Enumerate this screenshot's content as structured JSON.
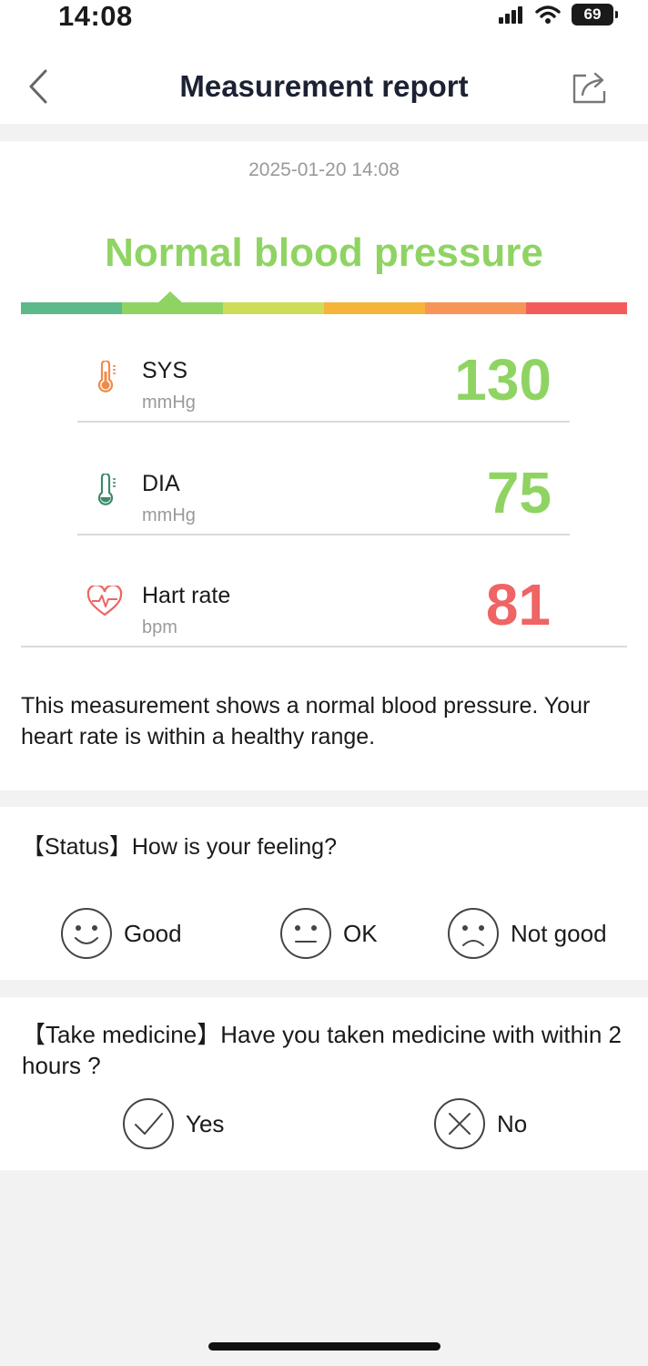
{
  "status_bar": {
    "time": "14:08",
    "battery": "69",
    "icons": [
      "signal-icon",
      "wifi-icon",
      "battery-icon"
    ]
  },
  "header": {
    "title": "Measurement report",
    "back_icon": "chevron-left-icon",
    "share_icon": "share-icon"
  },
  "report": {
    "datetime": "2025-01-20 14:08",
    "status": "Normal blood pressure",
    "status_color": "#8fd463",
    "scale_colors": [
      "#5bb98b",
      "#8fd463",
      "#cfdc5a",
      "#f5b53a",
      "#f79558",
      "#f45c5c"
    ],
    "scale_level_index": 1,
    "metrics": [
      {
        "label": "SYS",
        "unit": "mmHg",
        "value": "130",
        "color": "#8fd463",
        "icon": "thermometer-icon"
      },
      {
        "label": "DIA",
        "unit": "mmHg",
        "value": "75",
        "color": "#8fd463",
        "icon": "thermometer-icon"
      },
      {
        "label": "Hart rate",
        "unit": "bpm",
        "value": "81",
        "color": "#ef6464",
        "icon": "heart-pulse-icon"
      }
    ],
    "summary": "This measurement shows a normal blood pressure. Your heart rate is within a healthy range."
  },
  "status_section": {
    "question": "【Status】How is your feeling?",
    "options": [
      {
        "label": "Good",
        "icon": "smile-face-icon"
      },
      {
        "label": "OK",
        "icon": "neutral-face-icon"
      },
      {
        "label": "Not good",
        "icon": "sad-face-icon"
      }
    ]
  },
  "medicine_section": {
    "question": "【Take medicine】Have you taken medicine with within 2 hours ?",
    "options": [
      {
        "label": "Yes",
        "icon": "check-circle-icon"
      },
      {
        "label": "No",
        "icon": "x-circle-icon"
      }
    ]
  }
}
